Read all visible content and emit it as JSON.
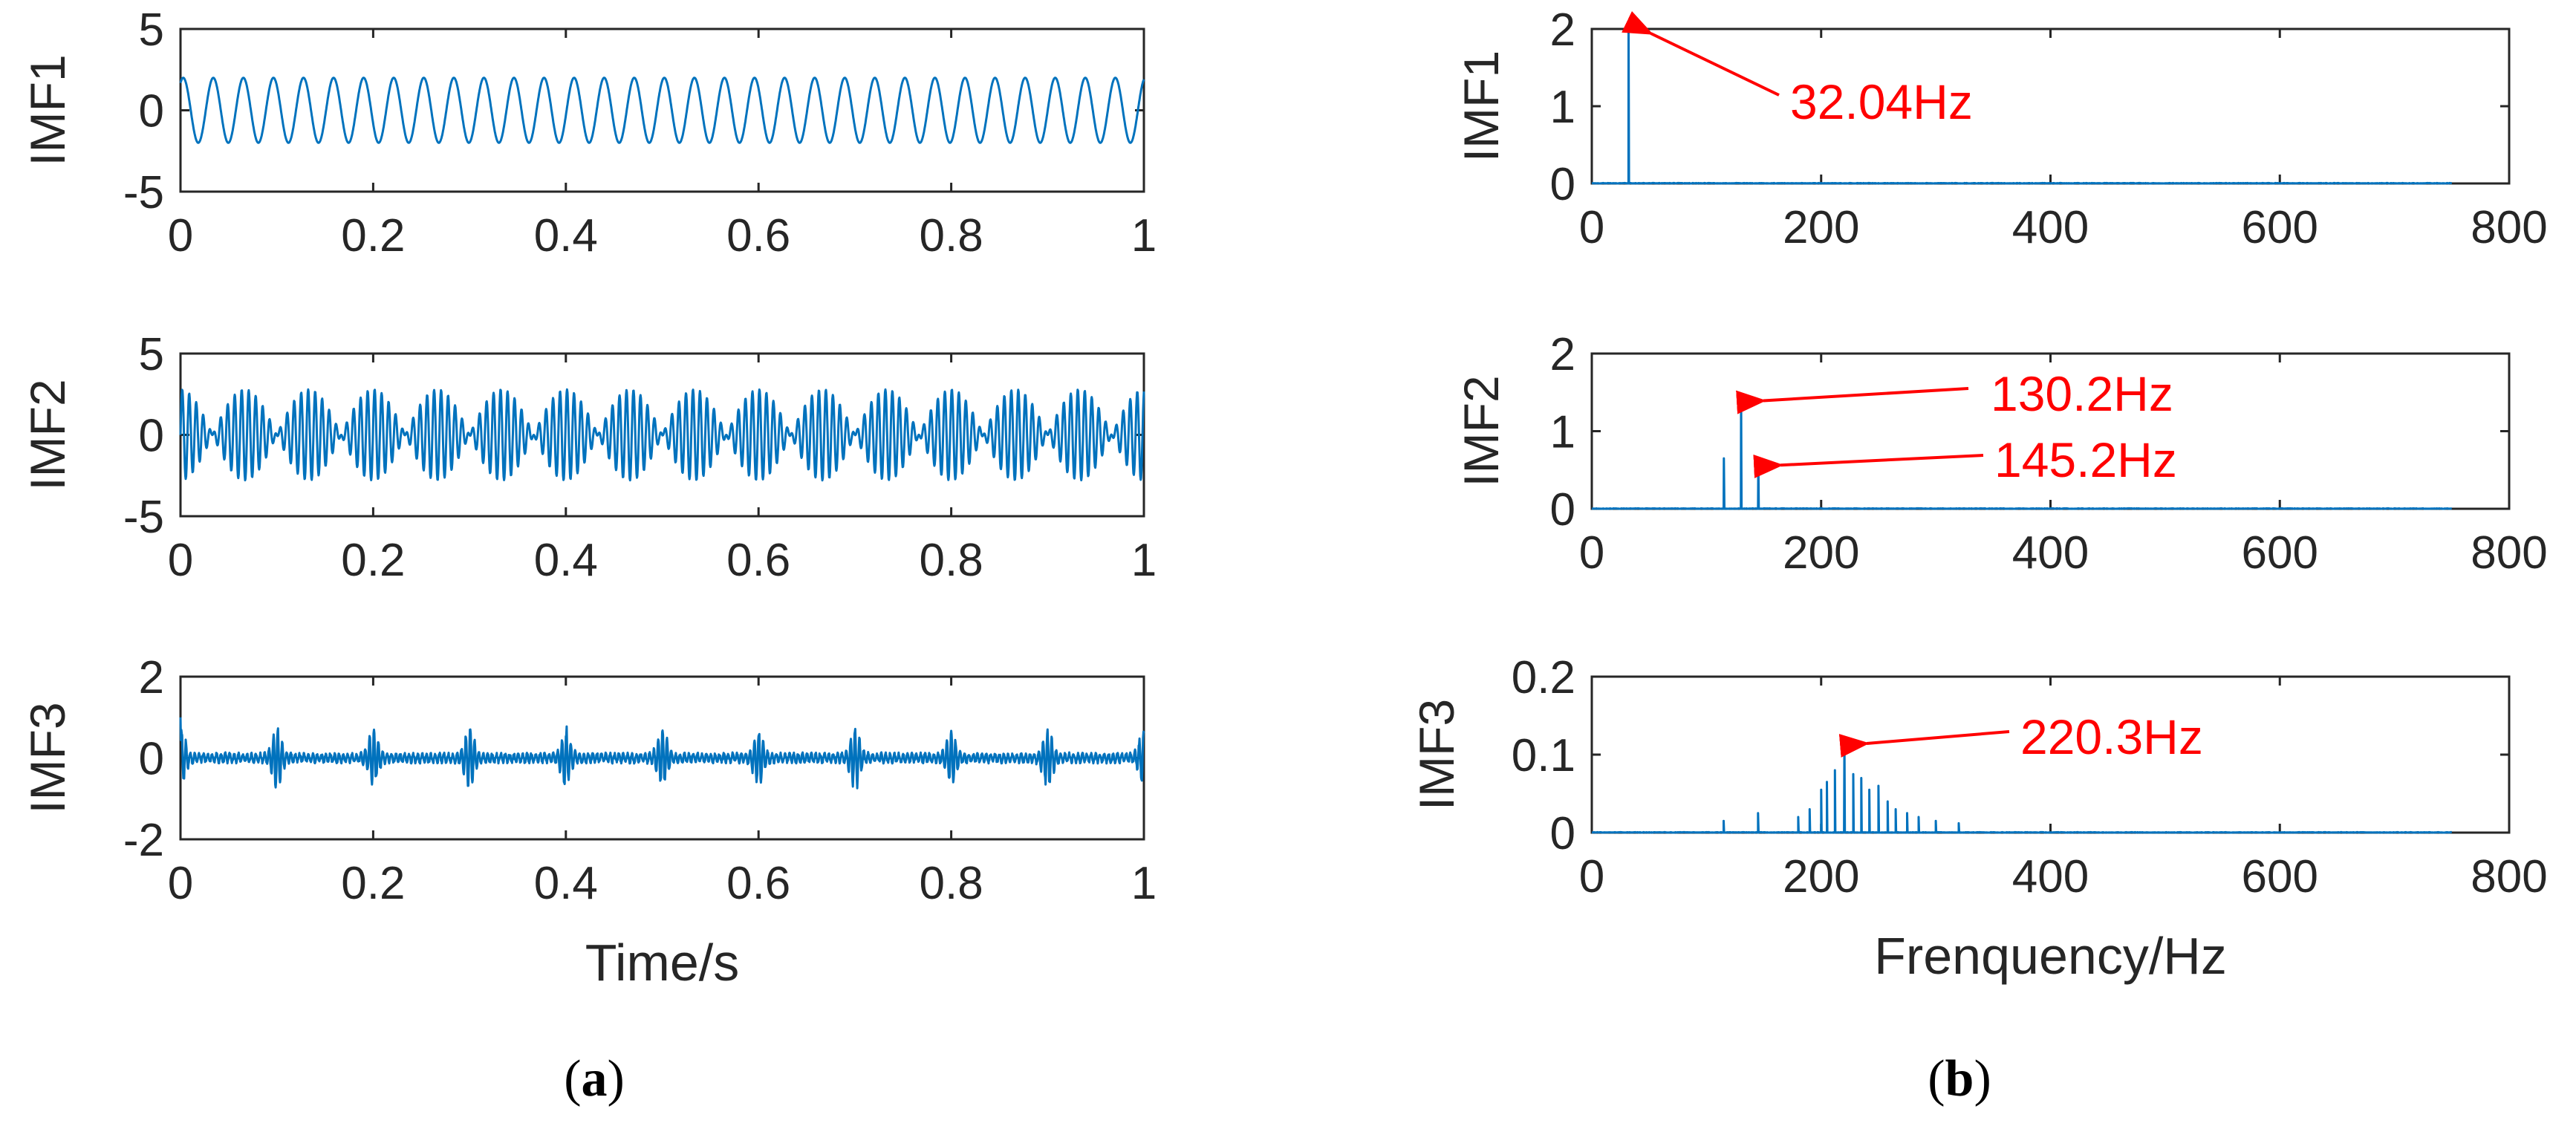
{
  "colors": {
    "line": "#0072BD",
    "annotation": "#FF0000",
    "axis": "#262626"
  },
  "panel_labels": {
    "a_open": "(",
    "a": "a",
    "a_close": ")",
    "b_open": "(",
    "b": "b",
    "b_close": ")"
  },
  "chart_data": [
    {
      "type": "line",
      "name": "IMF1-time",
      "ylabel": "IMF1",
      "xlabel": "",
      "xlim": [
        0,
        1
      ],
      "ylim": [
        -5,
        5
      ],
      "xticks": [
        "0",
        "0.2",
        "0.4",
        "0.6",
        "0.8",
        "1"
      ],
      "yticks": [
        "-5",
        "0",
        "5"
      ],
      "signal": {
        "kind": "sine",
        "amplitude": 2.0,
        "frequency_hz": 32.04
      }
    },
    {
      "type": "line",
      "name": "IMF2-time",
      "ylabel": "IMF2",
      "xlabel": "",
      "xlim": [
        0,
        1
      ],
      "ylim": [
        -5,
        5
      ],
      "xticks": [
        "0",
        "0.2",
        "0.4",
        "0.6",
        "0.8",
        "1"
      ],
      "yticks": [
        "-5",
        "0",
        "5"
      ],
      "signal": {
        "kind": "beat",
        "amplitude": 1.4,
        "frequency_hz": [
          130.2,
          145.2
        ]
      }
    },
    {
      "type": "line",
      "name": "IMF3-time",
      "ylabel": "IMF3",
      "xlabel": "Time/s",
      "xlim": [
        0,
        1
      ],
      "ylim": [
        -2,
        2
      ],
      "xticks": [
        "0",
        "0.2",
        "0.4",
        "0.6",
        "0.8",
        "1"
      ],
      "yticks": [
        "-2",
        "0",
        "2"
      ],
      "signal": {
        "kind": "impulses",
        "base_amplitude": 0.1,
        "burst_amplitude": 0.75,
        "carrier_hz": 220.3,
        "burst_interval_s": 0.1
      }
    },
    {
      "type": "line",
      "name": "IMF1-spectrum",
      "ylabel": "IMF1",
      "xlabel": "",
      "xlim": [
        0,
        800
      ],
      "ylim": [
        0,
        2
      ],
      "xticks": [
        "0",
        "200",
        "400",
        "600",
        "800"
      ],
      "yticks": [
        "0",
        "1",
        "2"
      ],
      "peaks": [
        {
          "x": 32.04,
          "y": 2.0
        }
      ],
      "annotations": [
        {
          "text": "32.04Hz",
          "x": 32.04,
          "y": 2.0
        }
      ]
    },
    {
      "type": "line",
      "name": "IMF2-spectrum",
      "ylabel": "IMF2",
      "xlabel": "",
      "xlim": [
        0,
        800
      ],
      "ylim": [
        0,
        2
      ],
      "xticks": [
        "0",
        "200",
        "400",
        "600",
        "800"
      ],
      "yticks": [
        "0",
        "1",
        "2"
      ],
      "peaks": [
        {
          "x": 115.2,
          "y": 0.65
        },
        {
          "x": 130.2,
          "y": 1.45
        },
        {
          "x": 145.2,
          "y": 0.62
        }
      ],
      "annotations": [
        {
          "text": "130.2Hz",
          "x": 130.2,
          "y": 1.45
        },
        {
          "text": "145.2Hz",
          "x": 145.2,
          "y": 0.62
        }
      ]
    },
    {
      "type": "line",
      "name": "IMF3-spectrum",
      "ylabel": "IMF3",
      "xlabel": "Frenquency/Hz",
      "xlim": [
        0,
        800
      ],
      "ylim": [
        0,
        0.2
      ],
      "xticks": [
        "0",
        "200",
        "400",
        "600",
        "800"
      ],
      "yticks": [
        "0",
        "0.1",
        "0.2"
      ],
      "peaks": [
        {
          "x": 115,
          "y": 0.015
        },
        {
          "x": 145,
          "y": 0.025
        },
        {
          "x": 180,
          "y": 0.02
        },
        {
          "x": 190,
          "y": 0.03
        },
        {
          "x": 200,
          "y": 0.055
        },
        {
          "x": 205,
          "y": 0.065
        },
        {
          "x": 212,
          "y": 0.08
        },
        {
          "x": 220.3,
          "y": 0.12
        },
        {
          "x": 228,
          "y": 0.075
        },
        {
          "x": 235,
          "y": 0.07
        },
        {
          "x": 242,
          "y": 0.055
        },
        {
          "x": 250,
          "y": 0.06
        },
        {
          "x": 258,
          "y": 0.04
        },
        {
          "x": 265,
          "y": 0.03
        },
        {
          "x": 275,
          "y": 0.025
        },
        {
          "x": 285,
          "y": 0.02
        },
        {
          "x": 300,
          "y": 0.015
        },
        {
          "x": 320,
          "y": 0.012
        }
      ],
      "annotations": [
        {
          "text": "220.3Hz",
          "x": 220.3,
          "y": 0.12
        }
      ]
    }
  ]
}
